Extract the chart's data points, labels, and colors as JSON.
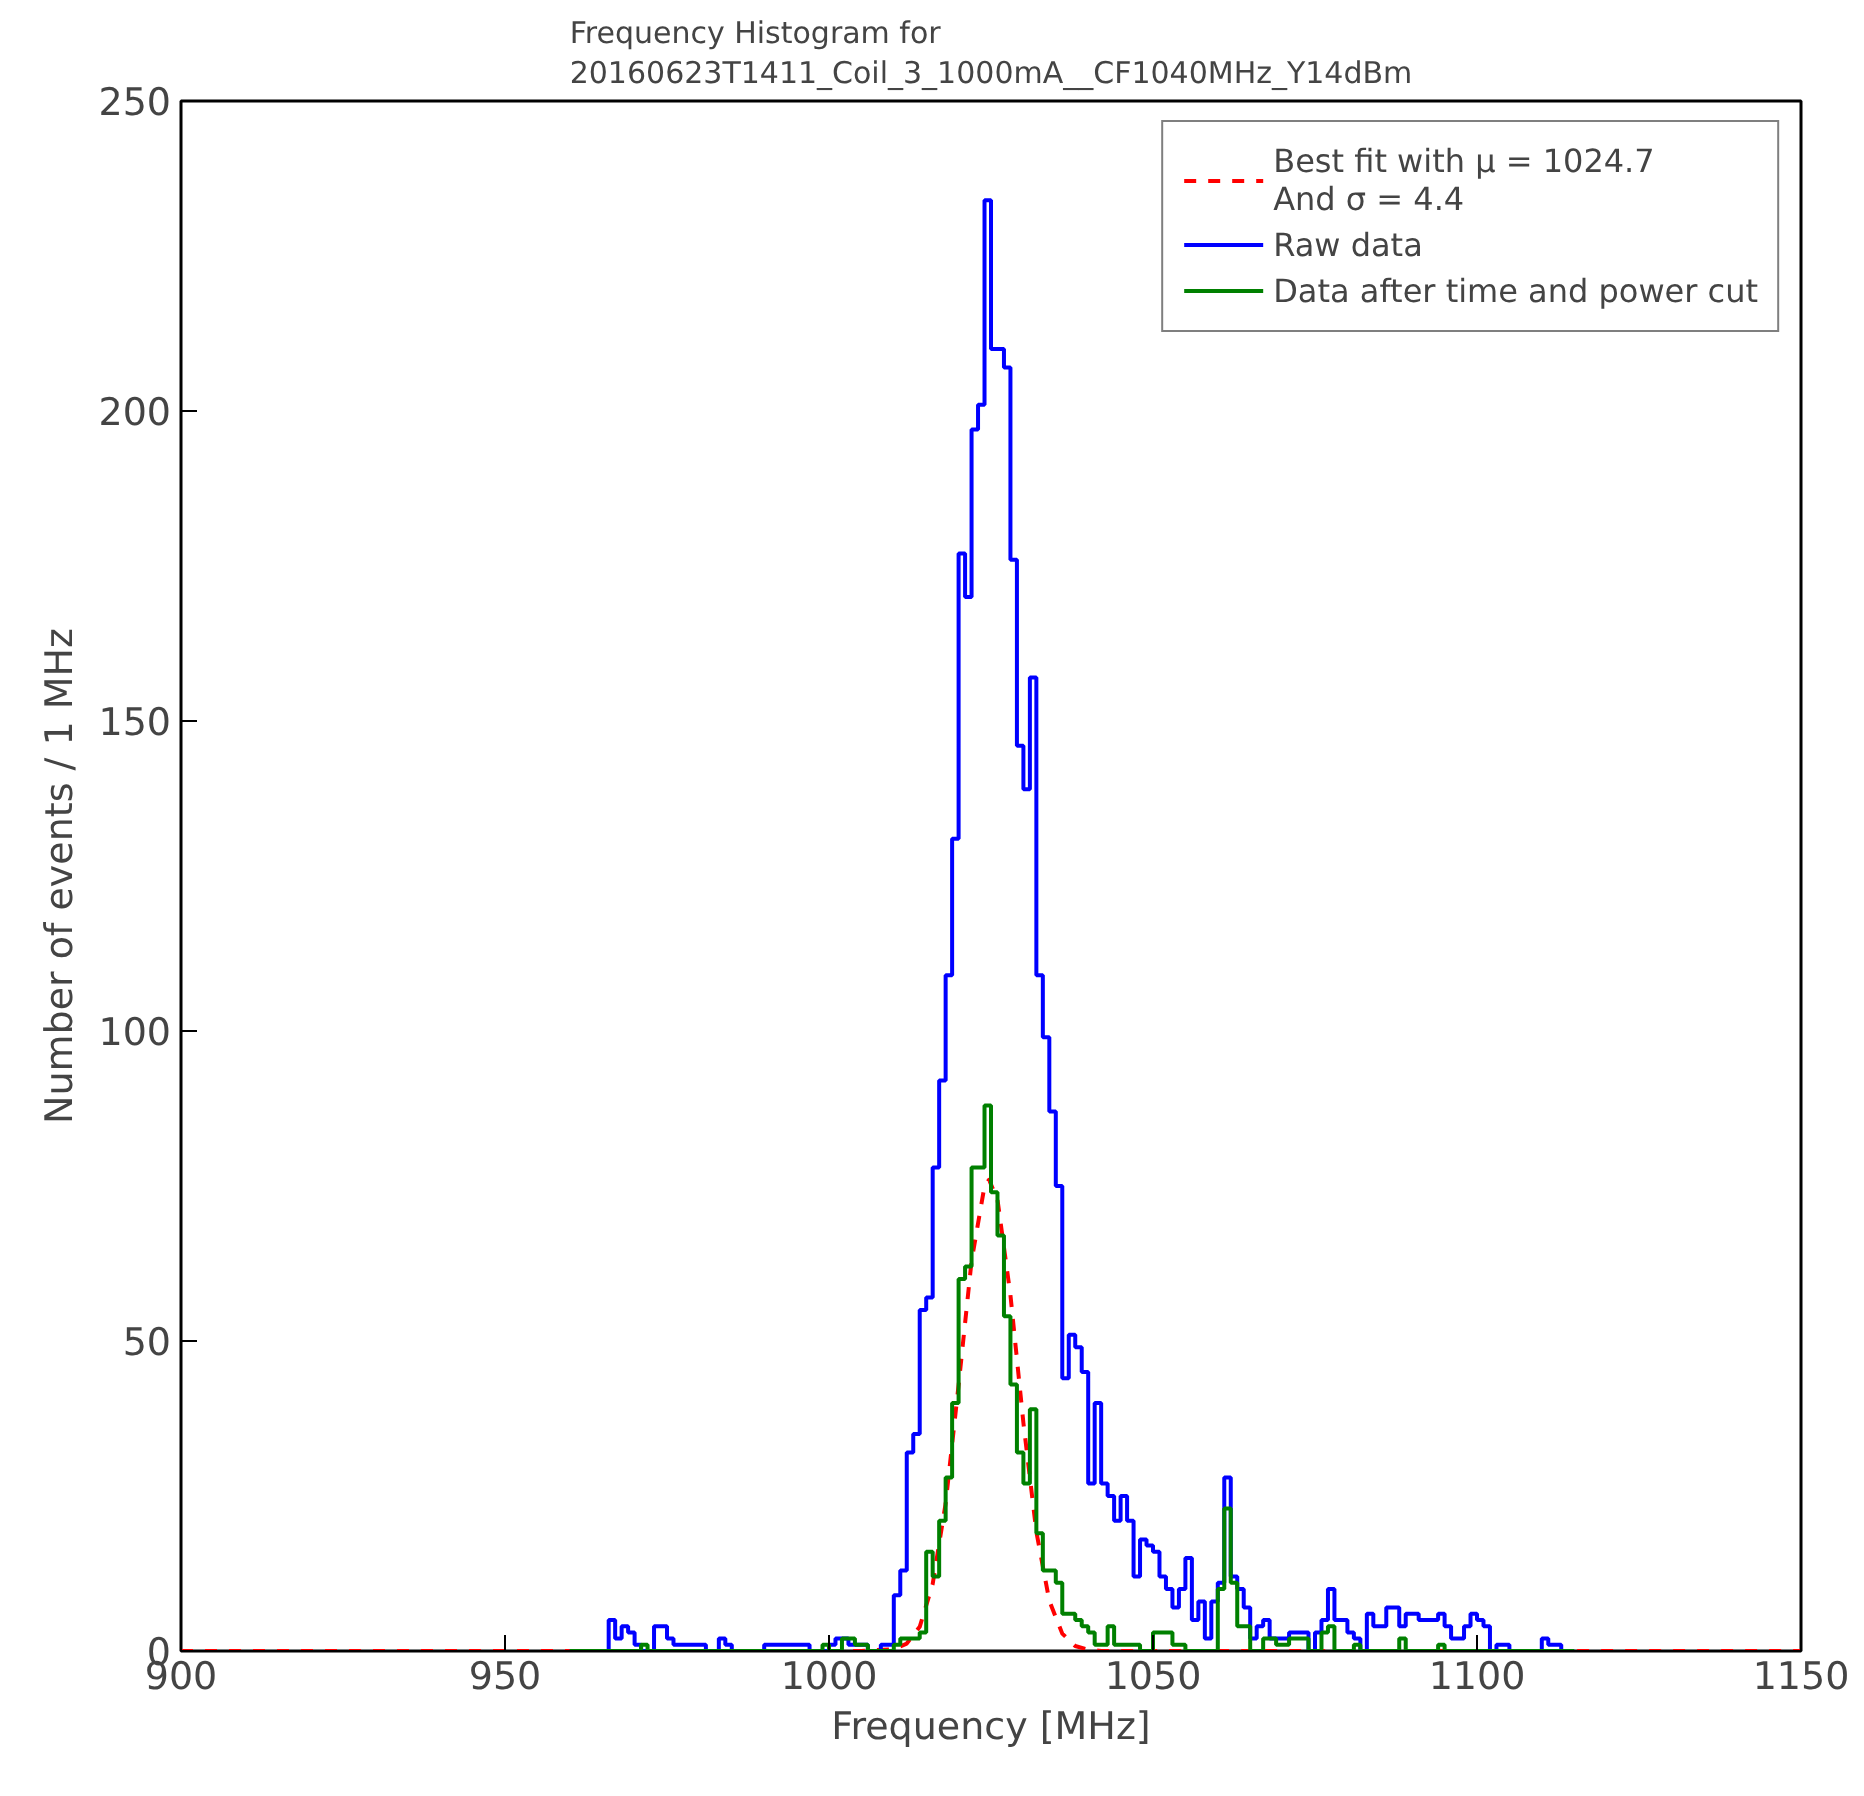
{
  "chart_data": {
    "type": "histogram",
    "title": "Frequency Histogram for\n20160623T1411_Coil_3_1000mA__CF1040MHz_Y14dBm",
    "xlabel": "Frequency [MHz]",
    "ylabel": "Number of events / 1 MHz",
    "bins": [
      960,
      961,
      962,
      963,
      964,
      965,
      966,
      967,
      968,
      969,
      970,
      971,
      972,
      973,
      974,
      975,
      976,
      977,
      978,
      979,
      980,
      981,
      982,
      983,
      984,
      985,
      986,
      987,
      988,
      989,
      990,
      991,
      992,
      993,
      994,
      995,
      996,
      997,
      998,
      999,
      1000,
      1001,
      1002,
      1003,
      1004,
      1005,
      1006,
      1007,
      1008,
      1009,
      1010,
      1011,
      1012,
      1013,
      1014,
      1015,
      1016,
      1017,
      1018,
      1019,
      1020,
      1021,
      1022,
      1023,
      1024,
      1025,
      1026,
      1027,
      1028,
      1029,
      1030,
      1031,
      1032,
      1033,
      1034,
      1035,
      1036,
      1037,
      1038,
      1039,
      1040,
      1041,
      1042,
      1043,
      1044,
      1045,
      1046,
      1047,
      1048,
      1049,
      1050,
      1051,
      1052,
      1053,
      1054,
      1055,
      1056,
      1057,
      1058,
      1059,
      1060,
      1061,
      1062,
      1063,
      1064,
      1065,
      1066,
      1067,
      1068,
      1069,
      1070,
      1071,
      1072,
      1073,
      1074,
      1075,
      1076,
      1077,
      1078,
      1079,
      1080,
      1081,
      1082,
      1083,
      1084,
      1085,
      1086,
      1087,
      1088,
      1089,
      1090,
      1091,
      1092,
      1093,
      1094,
      1095,
      1096,
      1097,
      1098,
      1099,
      1100,
      1101,
      1102,
      1103,
      1104,
      1105,
      1106,
      1107,
      1108,
      1109,
      1110,
      1111,
      1112,
      1113,
      1114,
      1115
    ],
    "series": [
      {
        "name": "Best fit with μ = 1024.7\nAnd σ = 4.4",
        "type": "line",
        "line_style": "dashed",
        "color": "#ff0000",
        "x": [
          900,
          1005,
          1010,
          1012,
          1014,
          1016,
          1018,
          1020,
          1022,
          1024,
          1024.7,
          1026,
          1028,
          1030,
          1032,
          1034,
          1036,
          1038,
          1040,
          1042,
          1045,
          1150
        ],
        "values": [
          0,
          0,
          0.3,
          1.2,
          3.9,
          10.8,
          23.8,
          42.9,
          62.9,
          75,
          76,
          72.8,
          57.4,
          36.8,
          19.2,
          8.1,
          2.8,
          0.8,
          0.2,
          0,
          0,
          0
        ]
      },
      {
        "name": "Raw data",
        "color": "#0000ff",
        "values": [
          0,
          0,
          0,
          0,
          0,
          0,
          5,
          2,
          4,
          3,
          1,
          0,
          0,
          4,
          4,
          2,
          1,
          1,
          1,
          1,
          1,
          0,
          0,
          2,
          1,
          0,
          0,
          0,
          0,
          0,
          1,
          1,
          1,
          1,
          1,
          1,
          1,
          0,
          0,
          0,
          1,
          2,
          2,
          1,
          1,
          1,
          0,
          0,
          1,
          1,
          9,
          13,
          32,
          35,
          55,
          57,
          78,
          92,
          109,
          131,
          177,
          170,
          197,
          201,
          234,
          210,
          210,
          207,
          176,
          146,
          139,
          157,
          109,
          99,
          87,
          75,
          44,
          51,
          49,
          45,
          27,
          40,
          27,
          25,
          21,
          25,
          21,
          12,
          18,
          17,
          16,
          12,
          10,
          7,
          10,
          15,
          5,
          8,
          2,
          8,
          11,
          28,
          12,
          10,
          7,
          2,
          4,
          5,
          2,
          2,
          2,
          3,
          3,
          3,
          0,
          3,
          5,
          10,
          5,
          5,
          3,
          2,
          0,
          6,
          4,
          4,
          7,
          7,
          4,
          6,
          6,
          5,
          5,
          5,
          6,
          4,
          2,
          2,
          4,
          6,
          5,
          4,
          0,
          1,
          1,
          0,
          0,
          0,
          0,
          0,
          2,
          1,
          1,
          0,
          0
        ]
      },
      {
        "name": "Data after time and power cut",
        "color": "#008000",
        "values": [
          0,
          0,
          0,
          0,
          0,
          0,
          0,
          0,
          0,
          0,
          0,
          1,
          0,
          0,
          0,
          0,
          0,
          0,
          0,
          0,
          0,
          0,
          0,
          0,
          0,
          0,
          0,
          0,
          0,
          0,
          0,
          0,
          0,
          0,
          0,
          0,
          0,
          0,
          0,
          1,
          0,
          0,
          2,
          2,
          1,
          1,
          0,
          0,
          0,
          0,
          1,
          2,
          2,
          2,
          3,
          16,
          12,
          21,
          28,
          40,
          60,
          62,
          78,
          78,
          88,
          74,
          67,
          54,
          43,
          32,
          27,
          39,
          19,
          13,
          13,
          11,
          6,
          6,
          5,
          4,
          3,
          1,
          1,
          4,
          1,
          1,
          1,
          1,
          0,
          0,
          3,
          3,
          3,
          1,
          1,
          0,
          0,
          0,
          0,
          0,
          10,
          23,
          11,
          4,
          4,
          0,
          0,
          2,
          2,
          1,
          1,
          2,
          2,
          2,
          0,
          0,
          3,
          4,
          0,
          0,
          0,
          1,
          0,
          0,
          0,
          0,
          0,
          0,
          2,
          0,
          0,
          0,
          0,
          0,
          1,
          0,
          0,
          0,
          0,
          0,
          0,
          0,
          0,
          0,
          0,
          0,
          0,
          0,
          0,
          0,
          0,
          0,
          0,
          0,
          0
        ]
      }
    ],
    "xlim": [
      900,
      1150
    ],
    "ylim": [
      0,
      250
    ],
    "xticks": [
      900,
      950,
      1000,
      1050,
      1100,
      1150
    ],
    "yticks": [
      0,
      50,
      100,
      150,
      200,
      250
    ],
    "grid": false,
    "legend": "top right"
  }
}
